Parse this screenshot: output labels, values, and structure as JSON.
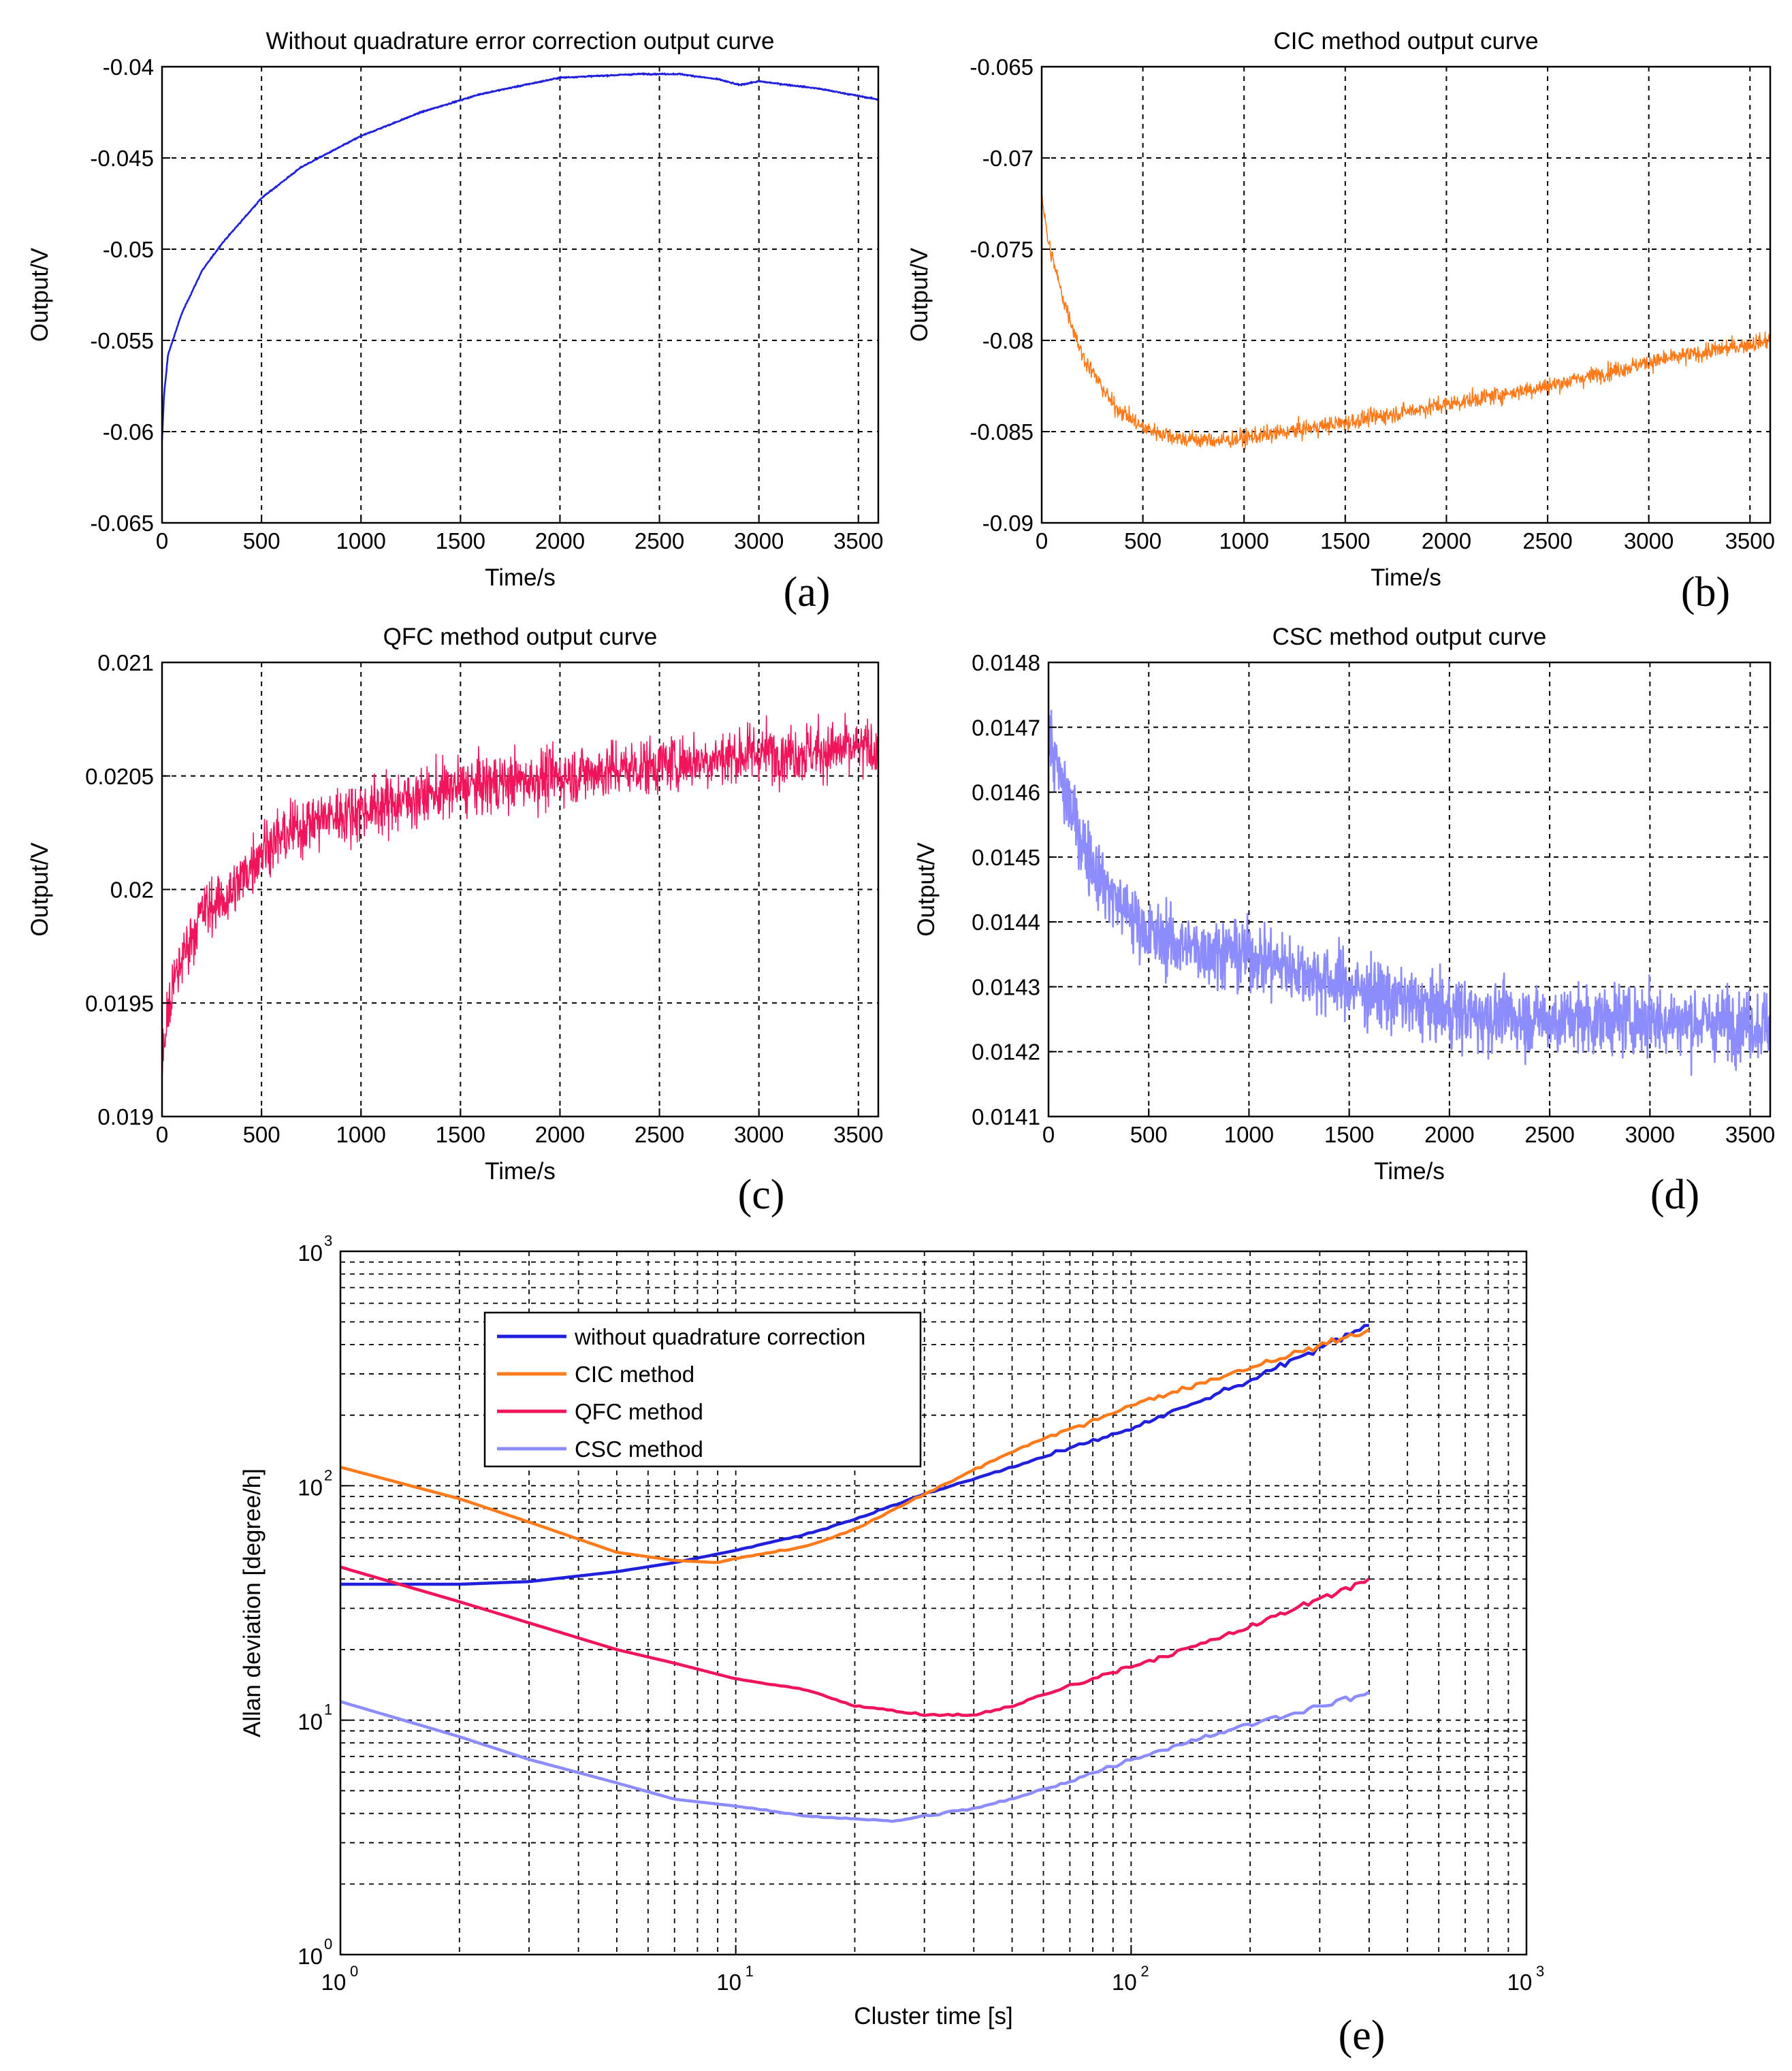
{
  "figure_labels": [
    "(a)",
    "(b)",
    "(c)",
    "(d)",
    "(e)"
  ],
  "colors": {
    "uncorrected": "#1f1fdc",
    "cic": "#ff7a1a",
    "qfc": "#f0145a",
    "csc": "#8c8cff"
  },
  "chart_data": [
    {
      "id": "a",
      "type": "line",
      "title": "Without quadrature error correction output curve",
      "xlabel": "Time/s",
      "ylabel": "Output/V",
      "panel_label": "(a)",
      "xlim": [
        0,
        3600
      ],
      "ylim": [
        -0.065,
        -0.04
      ],
      "xticks": [
        0,
        500,
        1000,
        1500,
        2000,
        2500,
        3000,
        3500
      ],
      "yticks": [
        -0.065,
        -0.06,
        -0.055,
        -0.05,
        -0.045,
        -0.04
      ],
      "ytick_labels": [
        "-0.065",
        "-0.06",
        "-0.055",
        "-0.05",
        "-0.045",
        "-0.04"
      ],
      "grid": true,
      "noise": 3e-05,
      "series": [
        {
          "name": "output",
          "color": "uncorrected",
          "x": [
            0,
            10,
            30,
            60,
            100,
            200,
            300,
            500,
            700,
            1000,
            1300,
            1600,
            2000,
            2400,
            2600,
            2800,
            2900,
            3000,
            3300,
            3600
          ],
          "y": [
            -0.0605,
            -0.058,
            -0.0558,
            -0.0548,
            -0.0535,
            -0.0512,
            -0.0497,
            -0.0472,
            -0.0455,
            -0.0438,
            -0.0425,
            -0.0415,
            -0.0406,
            -0.0404,
            -0.0404,
            -0.0407,
            -0.041,
            -0.0408,
            -0.0412,
            -0.0418
          ]
        }
      ]
    },
    {
      "id": "b",
      "type": "line",
      "title": "CIC method output curve",
      "xlabel": "Time/s",
      "ylabel": "Output/V",
      "panel_label": "(b)",
      "xlim": [
        0,
        3600
      ],
      "ylim": [
        -0.09,
        -0.065
      ],
      "xticks": [
        0,
        500,
        1000,
        1500,
        2000,
        2500,
        3000,
        3500
      ],
      "yticks": [
        -0.09,
        -0.085,
        -0.08,
        -0.075,
        -0.07,
        -0.065
      ],
      "ytick_labels": [
        "-0.09",
        "-0.085",
        "-0.08",
        "-0.075",
        "-0.07",
        "-0.065"
      ],
      "grid": true,
      "noise": 0.0004,
      "series": [
        {
          "name": "output",
          "color": "cic",
          "x": [
            0,
            30,
            100,
            200,
            350,
            500,
            700,
            900,
            1100,
            1500,
            2000,
            2500,
            3000,
            3600
          ],
          "y": [
            -0.072,
            -0.0745,
            -0.0775,
            -0.0808,
            -0.0835,
            -0.0848,
            -0.0854,
            -0.0855,
            -0.0852,
            -0.0845,
            -0.0835,
            -0.0825,
            -0.0812,
            -0.08
          ]
        }
      ]
    },
    {
      "id": "c",
      "type": "line",
      "title": "QFC method output curve",
      "xlabel": "Time/s",
      "ylabel": "Output/V",
      "panel_label": "(c)",
      "xlim": [
        0,
        3600
      ],
      "ylim": [
        0.019,
        0.021
      ],
      "xticks": [
        0,
        500,
        1000,
        1500,
        2000,
        2500,
        3000,
        3500
      ],
      "yticks": [
        0.019,
        0.0195,
        0.02,
        0.0205,
        0.021
      ],
      "ytick_labels": [
        "0.019",
        "0.0195",
        "0.02",
        "0.0205",
        "0.021"
      ],
      "grid": true,
      "noise": 0.00011,
      "series": [
        {
          "name": "output",
          "color": "qfc",
          "x": [
            0,
            20,
            50,
            100,
            200,
            350,
            500,
            750,
            1000,
            1500,
            2000,
            2500,
            3000,
            3600
          ],
          "y": [
            0.0192,
            0.0194,
            0.01955,
            0.0197,
            0.0199,
            0.01998,
            0.02018,
            0.0203,
            0.02035,
            0.02045,
            0.0205,
            0.02055,
            0.0206,
            0.02062
          ]
        }
      ]
    },
    {
      "id": "d",
      "type": "line",
      "title": "CSC method output curve",
      "xlabel": "Time/s",
      "ylabel": "Output/V",
      "panel_label": "(d)",
      "xlim": [
        0,
        3600
      ],
      "ylim": [
        0.0141,
        0.0148
      ],
      "xticks": [
        0,
        500,
        1000,
        1500,
        2000,
        2500,
        3000,
        3500
      ],
      "yticks": [
        0.0141,
        0.0142,
        0.0143,
        0.0144,
        0.0145,
        0.0146,
        0.0147,
        0.0148
      ],
      "ytick_labels": [
        "0.0141",
        "0.0142",
        "0.0143",
        "0.0144",
        "0.0145",
        "0.0146",
        "0.0147",
        "0.0148"
      ],
      "grid": true,
      "noise": 4.5e-05,
      "series": [
        {
          "name": "output",
          "color": "csc",
          "x": [
            0,
            30,
            100,
            200,
            300,
            500,
            700,
            1000,
            1500,
            2000,
            2500,
            3000,
            3600
          ],
          "y": [
            0.0147,
            0.01465,
            0.01458,
            0.0145,
            0.01445,
            0.01438,
            0.01436,
            0.01435,
            0.0143,
            0.01426,
            0.01425,
            0.01425,
            0.01424
          ]
        }
      ]
    },
    {
      "id": "e",
      "type": "line",
      "scale": "loglog",
      "title": "",
      "xlabel": "Cluster time [s]",
      "ylabel": "Allan deviation [degree/h]",
      "panel_label": "(e)",
      "xlim": [
        1,
        1000
      ],
      "ylim": [
        1,
        1000
      ],
      "xtick_exponents": [
        0,
        1,
        2,
        3
      ],
      "ytick_exponents": [
        0,
        1,
        2,
        3
      ],
      "tick_base": "10",
      "grid": true,
      "legend_location": "top-left",
      "legend": [
        "without quadrature correction",
        "CIC method",
        "QFC method",
        "CSC method"
      ],
      "series": [
        {
          "name": "without quadrature correction",
          "color": "uncorrected",
          "x": [
            1,
            2,
            3,
            5,
            7,
            10,
            15,
            20,
            30,
            50,
            100,
            200,
            400
          ],
          "y": [
            38,
            38,
            39,
            43,
            47,
            53,
            62,
            72,
            92,
            120,
            175,
            280,
            490
          ]
        },
        {
          "name": "CIC method",
          "color": "cic",
          "x": [
            1,
            2,
            3,
            5,
            7,
            9,
            10,
            15,
            20,
            30,
            50,
            100,
            200,
            400
          ],
          "y": [
            120,
            88,
            70,
            52,
            48,
            47,
            49,
            55,
            65,
            92,
            140,
            220,
            320,
            460
          ]
        },
        {
          "name": "QFC method",
          "color": "qfc",
          "x": [
            1,
            2,
            3,
            5,
            7,
            10,
            15,
            20,
            25,
            30,
            40,
            50,
            70,
            100,
            150,
            200,
            300,
            400
          ],
          "y": [
            45,
            32,
            26,
            20,
            17.5,
            15,
            13.5,
            11.5,
            11,
            10.5,
            10.5,
            11.5,
            14,
            17,
            21,
            25,
            33,
            40
          ]
        },
        {
          "name": "CSC method",
          "color": "csc",
          "x": [
            1,
            2,
            3,
            5,
            7,
            10,
            15,
            20,
            25,
            30,
            40,
            50,
            70,
            100,
            150,
            200,
            300,
            400
          ],
          "y": [
            12,
            8.5,
            6.8,
            5.4,
            4.6,
            4.3,
            3.9,
            3.8,
            3.7,
            3.9,
            4.2,
            4.6,
            5.5,
            6.8,
            8.4,
            9.6,
            11.5,
            13
          ]
        }
      ]
    }
  ]
}
